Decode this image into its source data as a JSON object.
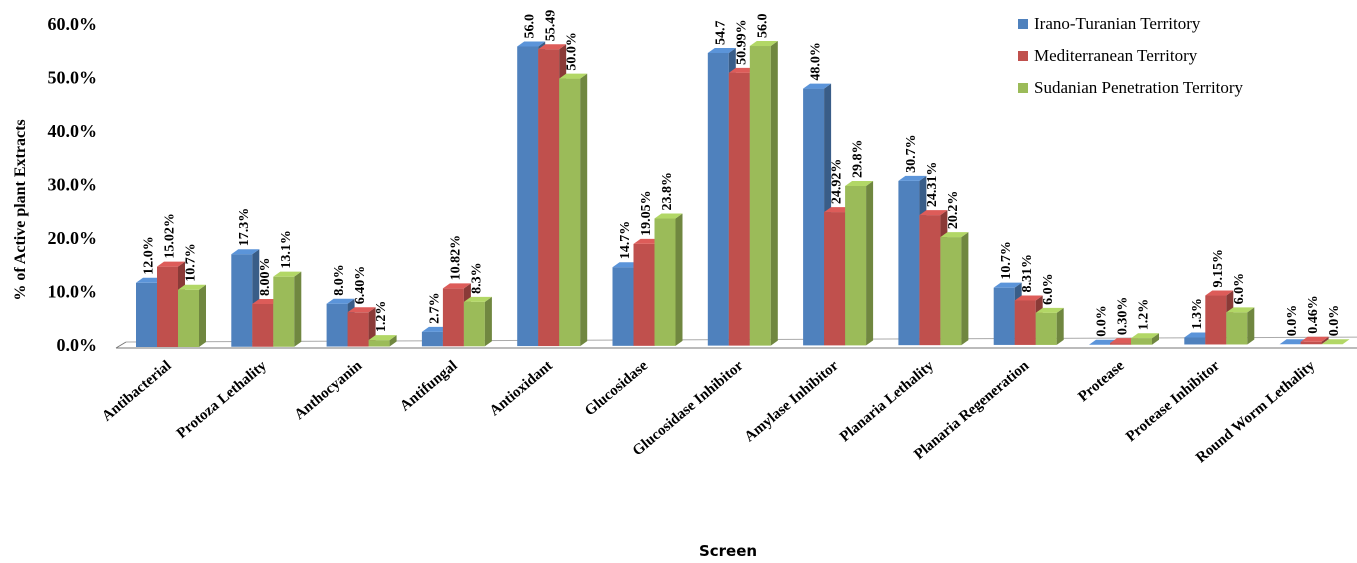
{
  "chart_data": {
    "type": "bar",
    "title": "",
    "xlabel": "Screen",
    "ylabel": "% of Active plant Extracts",
    "ylim": [
      0,
      60
    ],
    "yticks": [
      "0.0%",
      "10.0%",
      "20.0%",
      "30.0%",
      "40.0%",
      "50.0%",
      "60.0%"
    ],
    "grid": false,
    "legend_position": "top-right",
    "categories": [
      "Antibacterial",
      "Protoza Lethality",
      "Anthocyanin",
      "Antifungal",
      "Antioxidant",
      "Glucosidase",
      "Glucosidase Inhibitor",
      "Amylase Inhibitor",
      "Planaria Lethality",
      "Planaria Regeneration",
      "Protease",
      "Protease Inhibitor",
      "Round Worm Lethality"
    ],
    "series": [
      {
        "name": "Irano-Turanian Territory",
        "color": "#4F81BD",
        "values": [
          12.0,
          17.3,
          8.0,
          2.7,
          56.0,
          14.7,
          54.7,
          48.0,
          30.7,
          10.7,
          0.0,
          1.3,
          0.0
        ],
        "labels": [
          "12.0%",
          "17.3%",
          "8.0%",
          "2.7%",
          "56.0",
          "14.7%",
          "54.7",
          "48.0%",
          "30.7%",
          "10.7%",
          "0.0%",
          "1.3%",
          "0.0%"
        ]
      },
      {
        "name": " Mediterranean Territory",
        "color": "#C0504D",
        "values": [
          15.02,
          8.0,
          6.4,
          10.82,
          55.49,
          19.05,
          50.99,
          24.92,
          24.31,
          8.31,
          0.3,
          9.15,
          0.46
        ],
        "labels": [
          "15.02%",
          "8.00%",
          "6.40%",
          "10.82%",
          "55.49",
          "19.05%",
          "50.99%",
          "24.92%",
          "24.31%",
          "8.31%",
          "0.30%",
          "9.15%",
          "0.46%"
        ]
      },
      {
        "name": "Sudanian Penetration Territory",
        "color": "#9BBB59",
        "values": [
          10.7,
          13.1,
          1.2,
          8.3,
          50.0,
          23.8,
          56.0,
          29.8,
          20.2,
          6.0,
          1.2,
          6.0,
          0.0
        ],
        "labels": [
          "10.7%",
          "13.1%",
          "1.2%",
          "8.3%",
          "50.0%",
          "23.8%",
          "56.0",
          "29.8%",
          "20.2%",
          "6.0%",
          "1.2%",
          "6.0%",
          "0.0%"
        ]
      }
    ]
  }
}
